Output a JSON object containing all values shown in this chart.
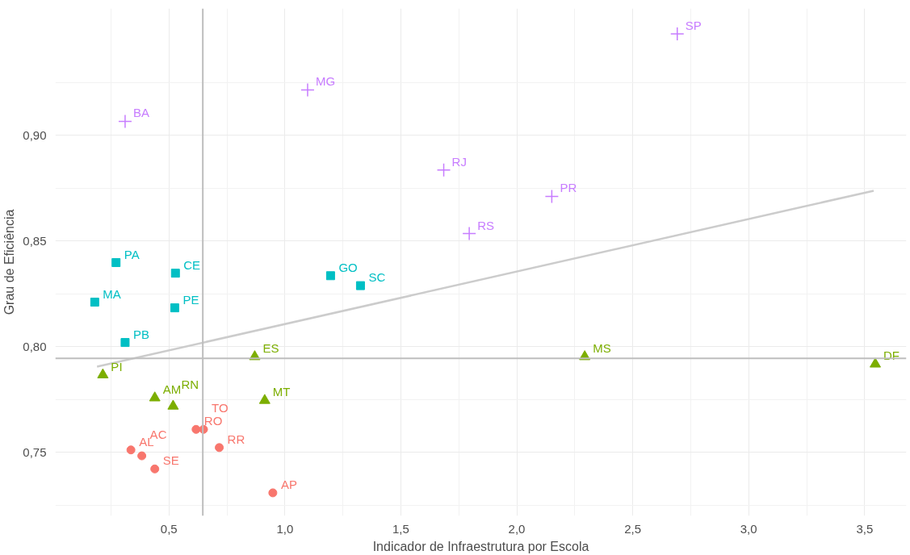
{
  "chart_data": {
    "type": "scatter",
    "xlabel": "Indicador de Infraestrutura por Escola",
    "ylabel": "Grau de Eficiência",
    "xlim": [
      0.01,
      3.68
    ],
    "ylim": [
      0.72,
      0.96
    ],
    "xticks": [
      {
        "value": 0.5,
        "label": "0,5"
      },
      {
        "value": 1.0,
        "label": "1,0"
      },
      {
        "value": 1.5,
        "label": "1,5"
      },
      {
        "value": 2.0,
        "label": "2,0"
      },
      {
        "value": 2.5,
        "label": "2,5"
      },
      {
        "value": 3.0,
        "label": "3,0"
      },
      {
        "value": 3.5,
        "label": "3,5"
      }
    ],
    "yticks": [
      {
        "value": 0.75,
        "label": "0,75"
      },
      {
        "value": 0.8,
        "label": "0,80"
      },
      {
        "value": 0.85,
        "label": "0,85"
      },
      {
        "value": 0.9,
        "label": "0,90"
      }
    ],
    "grid": true,
    "series": [
      {
        "color": "#c77cff",
        "marker": "cross",
        "x": [
          2.692,
          1.098,
          0.311,
          1.685,
          2.151,
          1.795
        ],
        "values": [
          0.948,
          0.9215,
          0.9066,
          0.8836,
          0.8711,
          0.8535
        ]
      },
      {
        "color": "#00bfc4",
        "marker": "square",
        "x": [
          0.272,
          0.528,
          1.197,
          1.326,
          0.18,
          0.525,
          0.311
        ],
        "values": [
          0.8398,
          0.8348,
          0.8336,
          0.8289,
          0.8211,
          0.8184,
          0.802
        ]
      },
      {
        "color": "#7cae00",
        "marker": "triangle",
        "x": [
          0.87,
          2.293,
          3.546,
          0.215,
          0.439,
          0.518,
          0.913
        ],
        "values": [
          0.7953,
          0.7953,
          0.7918,
          0.7867,
          0.7758,
          0.7719,
          0.7746
        ]
      },
      {
        "color": "#f8766d",
        "marker": "circle",
        "x": [
          0.617,
          0.649,
          0.336,
          0.383,
          0.439,
          0.717,
          0.948
        ],
        "values": [
          0.7609,
          0.7609,
          0.7512,
          0.7484,
          0.7422,
          0.7523,
          0.7309
        ]
      },
      {
        "type": "line",
        "color": "#cccccc",
        "x": [
          0.19,
          3.539
        ],
        "values": [
          0.7906,
          0.8738
        ]
      }
    ],
    "ref_lines": [
      {
        "axis": "x",
        "value": 0.646,
        "color": "#bebebe"
      },
      {
        "axis": "y",
        "value": 0.7945,
        "color": "#bebebe"
      }
    ],
    "annotations": [
      {
        "text": "SP",
        "x": 2.692,
        "y": 0.948
      },
      {
        "text": "MG",
        "x": 1.098,
        "y": 0.9215
      },
      {
        "text": "BA",
        "x": 0.311,
        "y": 0.9066
      },
      {
        "text": "RJ",
        "x": 1.685,
        "y": 0.8836
      },
      {
        "text": "PR",
        "x": 2.151,
        "y": 0.8711
      },
      {
        "text": "RS",
        "x": 1.795,
        "y": 0.8535
      },
      {
        "text": "PA",
        "x": 0.272,
        "y": 0.8398
      },
      {
        "text": "CE",
        "x": 0.528,
        "y": 0.8348
      },
      {
        "text": "GO",
        "x": 1.197,
        "y": 0.8336
      },
      {
        "text": "SC",
        "x": 1.326,
        "y": 0.8289
      },
      {
        "text": "MA",
        "x": 0.18,
        "y": 0.8211
      },
      {
        "text": "PE",
        "x": 0.525,
        "y": 0.8184
      },
      {
        "text": "PB",
        "x": 0.311,
        "y": 0.802
      },
      {
        "text": "ES",
        "x": 0.87,
        "y": 0.7953
      },
      {
        "text": "MS",
        "x": 2.293,
        "y": 0.7953
      },
      {
        "text": "DF",
        "x": 3.546,
        "y": 0.7918
      },
      {
        "text": "PI",
        "x": 0.215,
        "y": 0.7867
      },
      {
        "text": "AM",
        "x": 0.439,
        "y": 0.7758
      },
      {
        "text": "RN",
        "x": 0.518,
        "y": 0.7719
      },
      {
        "text": "MT",
        "x": 0.913,
        "y": 0.7746
      },
      {
        "text": "RO",
        "x": 0.617,
        "y": 0.7609
      },
      {
        "text": "TO",
        "x": 0.649,
        "y": 0.7609
      },
      {
        "text": "AL",
        "x": 0.336,
        "y": 0.7512
      },
      {
        "text": "AC",
        "x": 0.383,
        "y": 0.7484
      },
      {
        "text": "SE",
        "x": 0.439,
        "y": 0.7422
      },
      {
        "text": "RR",
        "x": 0.717,
        "y": 0.7523
      },
      {
        "text": "AP",
        "x": 0.948,
        "y": 0.7309
      }
    ]
  }
}
